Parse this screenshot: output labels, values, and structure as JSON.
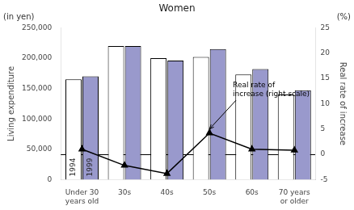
{
  "chart_data": {
    "type": "bar",
    "title": "Women",
    "categories": [
      "Under 30\nyears old",
      "30s",
      "40s",
      "50s",
      "60s",
      "70 years\nor older"
    ],
    "series": [
      {
        "name": "1994",
        "color": "#ffffff",
        "values": [
          165000,
          220000,
          200000,
          202000,
          173000,
          140000
        ]
      },
      {
        "name": "1999",
        "color": "#9999cc",
        "values": [
          170000,
          220000,
          196000,
          215000,
          182000,
          147000
        ]
      },
      {
        "type": "line",
        "axis": "y2",
        "color": "#000000",
        "marker": "triangle",
        "line_style": "solid",
        "values": [
          1.0,
          -2.2,
          -3.8,
          4.2,
          1.0,
          0.8
        ]
      }
    ],
    "ylabel": "Living expenditure",
    "y2label": "Real rate of increase",
    "y_unit": "(in yen)",
    "y2_unit": "(%)",
    "ylim": [
      0,
      250000
    ],
    "yticks": [
      0,
      {
        "value": 50000,
        "label": "50,000"
      },
      {
        "value": 100000,
        "label": "100,000"
      },
      {
        "value": 150000,
        "label": "150,000"
      },
      {
        "value": 200000,
        "label": "200,000"
      },
      {
        "value": 250000,
        "label": "250,000"
      }
    ],
    "y2lim": [
      -5,
      25
    ],
    "y2ticks": [
      -5,
      0,
      5,
      10,
      15,
      20,
      25
    ],
    "annotations": [
      {
        "text": "Real rate of\nincrease (right scale)",
        "x": "50s",
        "y": 4.2
      }
    ],
    "grid": false
  }
}
